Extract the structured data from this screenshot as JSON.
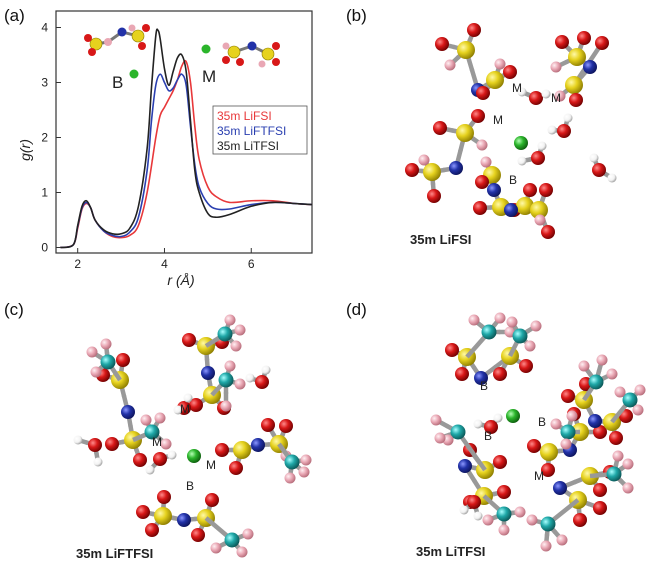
{
  "panels": [
    {
      "letter": "(a)"
    },
    {
      "letter": "(b)",
      "caption": "35m LiFSI",
      "sites": [
        "M",
        "M",
        "M",
        "B"
      ]
    },
    {
      "letter": "(c)",
      "caption": "35m LiFTFSI",
      "sites": [
        "M",
        "M",
        "M",
        "B"
      ]
    },
    {
      "letter": "(d)",
      "caption": "35m LiTFSI",
      "sites": [
        "B",
        "B",
        "B",
        "M"
      ]
    }
  ],
  "colors": {
    "sulfur": "#e6d21e",
    "oxygen": "#d81818",
    "nitrogen": "#2232a8",
    "fluorine": "#e9a7b4",
    "carbon": "#1fa8a8",
    "hydrogen": "#f2f2f2",
    "lithium": "#2bb52b"
  },
  "chart_data": {
    "type": "line",
    "xlabel": "r (Å)",
    "ylabel": "g(r)",
    "xlim": [
      1.5,
      7.4
    ],
    "ylim": [
      -0.1,
      4.3
    ],
    "xticks": [
      2,
      4,
      6
    ],
    "yticks": [
      0,
      1,
      2,
      3,
      4
    ],
    "legend_position": "center-right",
    "site_labels": {
      "B": "B",
      "M": "M"
    },
    "series": [
      {
        "name": "35m LiFSI",
        "color": "#e8383a",
        "x": [
          1.6,
          1.9,
          2.0,
          2.1,
          2.2,
          2.3,
          2.4,
          2.6,
          2.8,
          3.0,
          3.2,
          3.4,
          3.6,
          3.8,
          3.9,
          4.0,
          4.1,
          4.2,
          4.3,
          4.4,
          4.5,
          4.6,
          4.7,
          4.8,
          5.0,
          5.2,
          5.5,
          6.0,
          6.5,
          7.0,
          7.4
        ],
        "y": [
          0.0,
          0.05,
          0.35,
          0.7,
          0.8,
          0.72,
          0.5,
          0.3,
          0.2,
          0.18,
          0.22,
          0.4,
          1.0,
          2.0,
          2.4,
          2.55,
          2.7,
          2.85,
          3.05,
          3.3,
          3.38,
          3.0,
          2.2,
          1.6,
          1.1,
          0.92,
          0.82,
          0.85,
          0.85,
          0.8,
          0.78
        ]
      },
      {
        "name": "35m LiFTFSI",
        "color": "#2a3fb0",
        "x": [
          1.6,
          1.9,
          2.0,
          2.1,
          2.2,
          2.3,
          2.4,
          2.6,
          2.8,
          3.0,
          3.2,
          3.4,
          3.6,
          3.7,
          3.8,
          3.9,
          4.0,
          4.1,
          4.2,
          4.3,
          4.4,
          4.5,
          4.6,
          4.7,
          4.8,
          5.0,
          5.2,
          5.5,
          6.0,
          6.5,
          7.0,
          7.4
        ],
        "y": [
          0.0,
          0.05,
          0.38,
          0.72,
          0.82,
          0.72,
          0.5,
          0.3,
          0.22,
          0.2,
          0.28,
          0.55,
          1.4,
          2.3,
          2.95,
          3.15,
          3.0,
          2.85,
          2.9,
          3.05,
          3.15,
          2.95,
          2.2,
          1.5,
          1.1,
          0.8,
          0.7,
          0.7,
          0.78,
          0.82,
          0.8,
          0.78
        ]
      },
      {
        "name": "35m LiTFSI",
        "color": "#222222",
        "x": [
          1.6,
          1.9,
          2.0,
          2.1,
          2.2,
          2.3,
          2.4,
          2.6,
          2.8,
          3.0,
          3.2,
          3.4,
          3.6,
          3.7,
          3.8,
          3.85,
          3.9,
          4.0,
          4.1,
          4.2,
          4.3,
          4.4,
          4.5,
          4.6,
          4.7,
          4.8,
          5.0,
          5.2,
          5.5,
          6.0,
          6.5,
          7.0,
          7.4
        ],
        "y": [
          0.0,
          0.05,
          0.4,
          0.75,
          0.85,
          0.72,
          0.5,
          0.32,
          0.25,
          0.25,
          0.35,
          0.75,
          1.8,
          2.9,
          3.85,
          3.95,
          3.8,
          3.25,
          2.95,
          3.2,
          3.45,
          3.5,
          3.2,
          2.3,
          1.4,
          1.0,
          0.62,
          0.55,
          0.6,
          0.75,
          0.82,
          0.8,
          0.78
        ]
      }
    ]
  }
}
